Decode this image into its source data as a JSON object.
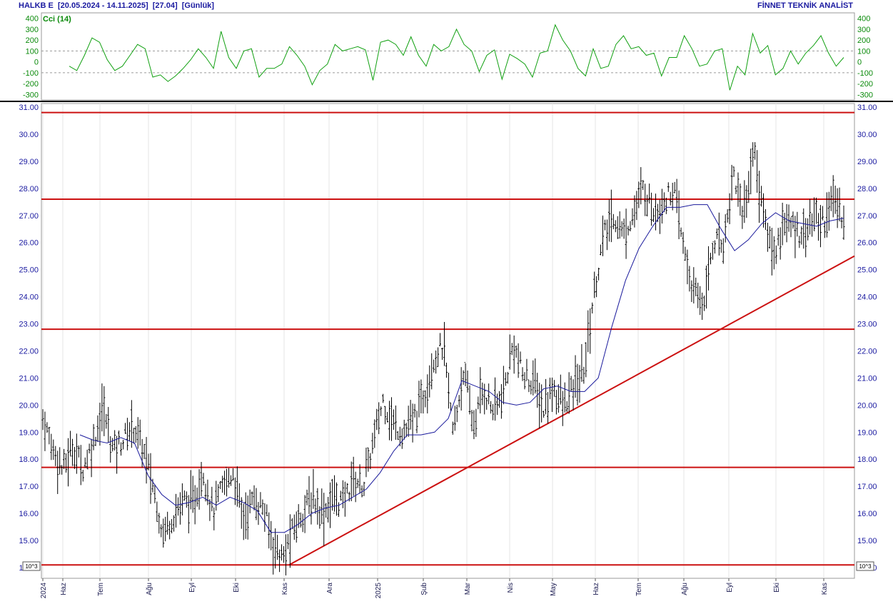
{
  "header": {
    "ticker": "HALKB E",
    "range": "[20.05.2024 - 14.11.2025]",
    "last": "[27.04]",
    "period": "[Günlük]",
    "brand": "FİNNET TEKNİK ANALİST"
  },
  "colors": {
    "bars": "#000000",
    "ma": "#1a1a9c",
    "levels": "#cc1111",
    "trend": "#cc1111",
    "cci": "#11a011",
    "axis_text_price": "#1a1aa0",
    "axis_text_cci": "#0a8a0a"
  },
  "chart_data": [
    {
      "type": "line",
      "title": "Cci (14)",
      "ylim": [
        -350,
        450
      ],
      "yticks": [
        400,
        300,
        200,
        100,
        0,
        -100,
        -200,
        -300
      ],
      "yticks_labels": [
        "400",
        "300",
        "200",
        "100",
        "0",
        "-100",
        "-200",
        "-300"
      ],
      "reference_lines": [
        100,
        -100
      ],
      "series": [
        {
          "name": "Cci (14)",
          "values": [
            -40,
            -80,
            60,
            220,
            180,
            20,
            -80,
            -40,
            60,
            160,
            120,
            -140,
            -120,
            -180,
            -130,
            -60,
            20,
            120,
            40,
            -60,
            280,
            40,
            -60,
            100,
            120,
            -140,
            -60,
            -60,
            -20,
            140,
            60,
            -40,
            -210,
            -80,
            -20,
            160,
            100,
            120,
            140,
            110,
            -170,
            180,
            200,
            160,
            60,
            230,
            60,
            -40,
            160,
            100,
            140,
            300,
            160,
            100,
            -90,
            60,
            110,
            -160,
            70,
            30,
            -20,
            -140,
            80,
            100,
            340,
            200,
            100,
            -60,
            -130,
            120,
            -60,
            -40,
            160,
            240,
            120,
            140,
            60,
            80,
            -130,
            40,
            40,
            240,
            120,
            -40,
            -20,
            100,
            120,
            -260,
            -40,
            -120,
            260,
            80,
            150,
            -120,
            -60,
            100,
            -20,
            80,
            150,
            240,
            80,
            -40,
            40
          ]
        }
      ]
    },
    {
      "type": "bar",
      "ylim": [
        14.0,
        31.0
      ],
      "yticks": [
        31,
        30,
        29,
        28,
        27,
        26,
        25,
        24,
        23,
        22,
        21,
        20,
        19,
        18,
        17,
        16,
        15,
        14
      ],
      "yticks_labels": [
        "31.00",
        "30.00",
        "29.00",
        "28.00",
        "27.00",
        "26.00",
        "25.00",
        "24.00",
        "23.00",
        "22.00",
        "21.00",
        "20.00",
        "19.00",
        "18.00",
        "17.00",
        "16.00",
        "15.00",
        "14.00"
      ],
      "scale_label": "10^3",
      "categories": [
        "2024",
        "Haz",
        "Tem",
        "Ağu",
        "Eyl",
        "Eki",
        "Kas",
        "Ara",
        "2025",
        "Şub",
        "Mar",
        "Nis",
        "May",
        "Haz",
        "Tem",
        "Ağu",
        "Eyl",
        "Eki",
        "Kas"
      ],
      "price_path": [
        19.5,
        18.4,
        17.6,
        18.5,
        17.7,
        18.6,
        19.9,
        18.4,
        18.7,
        19.3,
        18.4,
        17.0,
        15.3,
        15.9,
        16.5,
        16.3,
        17.6,
        16.0,
        17.0,
        17.5,
        15.8,
        16.5,
        16.2,
        14.9,
        14.3,
        15.4,
        16.1,
        16.6,
        16.0,
        16.6,
        16.4,
        17.3,
        17.0,
        18.6,
        20.2,
        19.3,
        19.0,
        19.4,
        20.3,
        21.7,
        22.2,
        18.9,
        21.3,
        19.2,
        20.6,
        19.8,
        20.4,
        22.3,
        21.0,
        20.9,
        19.8,
        20.7,
        19.9,
        20.6,
        21.2,
        24.0,
        26.2,
        27.0,
        26.3,
        27.1,
        28.0,
        27.2,
        27.5,
        28.0,
        25.8,
        24.1,
        23.8,
        26.1,
        26.0,
        28.6,
        27.0,
        29.5,
        27.0,
        25.5,
        26.8,
        26.5,
        26.4,
        26.9,
        26.8,
        27.6,
        26.9
      ],
      "ma_path": [
        18.9,
        18.7,
        18.6,
        18.8,
        18.6,
        17.4,
        16.7,
        16.3,
        16.4,
        16.6,
        16.3,
        16.6,
        16.4,
        16.1,
        15.3,
        15.3,
        15.6,
        16.0,
        16.2,
        16.3,
        16.6,
        16.9,
        17.5,
        18.3,
        18.9,
        18.9,
        19.0,
        19.5,
        20.9,
        20.7,
        20.5,
        20.1,
        20.0,
        20.1,
        20.6,
        20.7,
        20.5,
        20.5,
        21.0,
        22.9,
        24.6,
        25.8,
        26.6,
        27.3,
        27.3,
        27.4,
        27.4,
        26.5,
        25.7,
        26.1,
        26.7,
        27.1,
        26.8,
        26.7,
        26.6,
        26.8,
        26.9
      ],
      "levels": [
        30.8,
        27.6,
        22.8,
        17.7,
        14.1
      ],
      "trendline": {
        "from": [
          "Kas",
          14.1
        ],
        "to": [
          "Kas",
          25.5
        ]
      }
    }
  ]
}
